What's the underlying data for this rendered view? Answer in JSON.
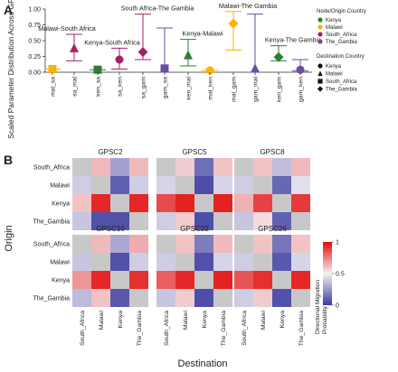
{
  "panels": {
    "A": {
      "letter": "A",
      "chart_data": {
        "type": "scatter",
        "ylabel": "Scaled Parameter Distribution Across GPSCs",
        "ylim": [
          0,
          1.0
        ],
        "yticks": [
          "0.00",
          "0.25",
          "0.50",
          "0.75",
          "1.00"
        ],
        "groups": [
          {
            "title": "Malawi-South Africa",
            "pair": [
              "mal_sa",
              "sa_mal"
            ],
            "origins": [
              "Malawi",
              "South_Africa"
            ],
            "dests": [
              "South_Africa",
              "Malawi"
            ],
            "median": [
              0.05,
              0.38
            ],
            "low": [
              0.05,
              0.18
            ],
            "high": [
              0.05,
              0.6
            ]
          },
          {
            "title": "Kenya-South Africa",
            "pair": [
              "ken_sa",
              "sa_ken"
            ],
            "origins": [
              "Kenya",
              "South_Africa"
            ],
            "dests": [
              "South_Africa",
              "Kenya"
            ],
            "median": [
              0.04,
              0.2
            ],
            "low": [
              0.04,
              0.05
            ],
            "high": [
              0.04,
              0.38
            ]
          },
          {
            "title": "South Africa-The Gambia",
            "pair": [
              "sa_gam",
              "gam_sa"
            ],
            "origins": [
              "South_Africa",
              "The_Gambia"
            ],
            "dests": [
              "The_Gambia",
              "South_Africa"
            ],
            "median": [
              0.32,
              0.06
            ],
            "low": [
              0.2,
              0.0
            ],
            "high": [
              0.92,
              0.7
            ]
          },
          {
            "title": "Kenya-Malawi",
            "pair": [
              "ken_mal",
              "mal_ken"
            ],
            "origins": [
              "Kenya",
              "Malawi"
            ],
            "dests": [
              "Malawi",
              "Kenya"
            ],
            "median": [
              0.27,
              0.03
            ],
            "low": [
              0.1,
              0.03
            ],
            "high": [
              0.52,
              0.03
            ]
          },
          {
            "title": "Malawi-The Gambia",
            "pair": [
              "mal_gam",
              "gam_mal"
            ],
            "origins": [
              "Malawi",
              "The_Gambia"
            ],
            "dests": [
              "The_Gambia",
              "Malawi"
            ],
            "median": [
              0.77,
              0.06
            ],
            "low": [
              0.35,
              0.0
            ],
            "high": [
              0.96,
              0.92
            ]
          },
          {
            "title": "Kenya-The Gambia",
            "pair": [
              "ken_gam",
              "gam_ken"
            ],
            "origins": [
              "Kenya",
              "The_Gambia"
            ],
            "dests": [
              "The_Gambia",
              "Kenya"
            ],
            "median": [
              0.24,
              0.04
            ],
            "low": [
              0.18,
              0.02
            ],
            "high": [
              0.42,
              0.2
            ]
          }
        ],
        "legend": {
          "origin_title": "Node/Origin Country",
          "origin_items": [
            {
              "label": "Kenya",
              "color": "#2e7d32"
            },
            {
              "label": "Malawi",
              "color": "#f9b300"
            },
            {
              "label": "South_Africa",
              "color": "#a3216a"
            },
            {
              "label": "The_Gambia",
              "color": "#6a4fa0"
            }
          ],
          "dest_title": "Destination Country",
          "dest_items": [
            {
              "label": "Kenya",
              "shape": "circle"
            },
            {
              "label": "Malawi",
              "shape": "triangle"
            },
            {
              "label": "South_Africa",
              "shape": "square"
            },
            {
              "label": "The_Gambia",
              "shape": "diamond"
            }
          ],
          "placement": "right"
        }
      }
    },
    "B": {
      "letter": "B",
      "chart_data": {
        "type": "heatmap",
        "ylabel": "Origin",
        "xlabel": "Destination",
        "rows": [
          "South_Africa",
          "Malawi",
          "Kenya",
          "The_Gambia"
        ],
        "cols": [
          "South_Africa",
          "Malawi",
          "Kenya",
          "The_Gambia"
        ],
        "colorbar": {
          "title": "Directional Migration Probability",
          "ticks": [
            "1",
            "0.5",
            "0"
          ],
          "range": [
            0,
            1
          ],
          "low": "#3b3ba0",
          "mid": "#f4f1f4",
          "high": "#e30b0b",
          "missing": "#c8c8c8"
        },
        "heatmaps": [
          {
            "title": "GPSC2",
            "values": [
              [
                null,
                0.62,
                0.28,
                0.62
              ],
              [
                0.4,
                null,
                0.1,
                0.4
              ],
              [
                0.6,
                0.94,
                null,
                0.94
              ],
              [
                0.38,
                0.06,
                0.06,
                null
              ]
            ]
          },
          {
            "title": "GPSC5",
            "values": [
              [
                null,
                0.58,
                0.14,
                0.6
              ],
              [
                0.42,
                null,
                0.05,
                0.42
              ],
              [
                0.86,
                0.95,
                null,
                0.95
              ],
              [
                0.4,
                0.58,
                0.05,
                null
              ]
            ]
          },
          {
            "title": "GPSC8",
            "values": [
              [
                null,
                0.6,
                0.36,
                0.62
              ],
              [
                0.4,
                null,
                0.12,
                0.45
              ],
              [
                0.64,
                0.88,
                null,
                0.9
              ],
              [
                0.38,
                0.55,
                0.1,
                null
              ]
            ]
          },
          {
            "title": "GPSC10",
            "values": [
              [
                null,
                0.62,
                0.3,
                0.65
              ],
              [
                0.38,
                null,
                0.06,
                0.4
              ],
              [
                0.7,
                0.94,
                null,
                0.92
              ],
              [
                0.35,
                0.6,
                0.08,
                null
              ]
            ]
          },
          {
            "title": "GPSC22",
            "values": [
              [
                null,
                0.6,
                0.18,
                0.62
              ],
              [
                0.4,
                null,
                0.06,
                0.42
              ],
              [
                0.82,
                0.94,
                null,
                0.95
              ],
              [
                0.38,
                0.58,
                0.05,
                null
              ]
            ]
          },
          {
            "title": "GPSC26",
            "values": [
              [
                null,
                0.6,
                0.16,
                0.6
              ],
              [
                0.4,
                null,
                0.08,
                0.42
              ],
              [
                0.84,
                0.92,
                null,
                0.94
              ],
              [
                0.4,
                0.58,
                0.06,
                null
              ]
            ]
          }
        ]
      }
    }
  }
}
